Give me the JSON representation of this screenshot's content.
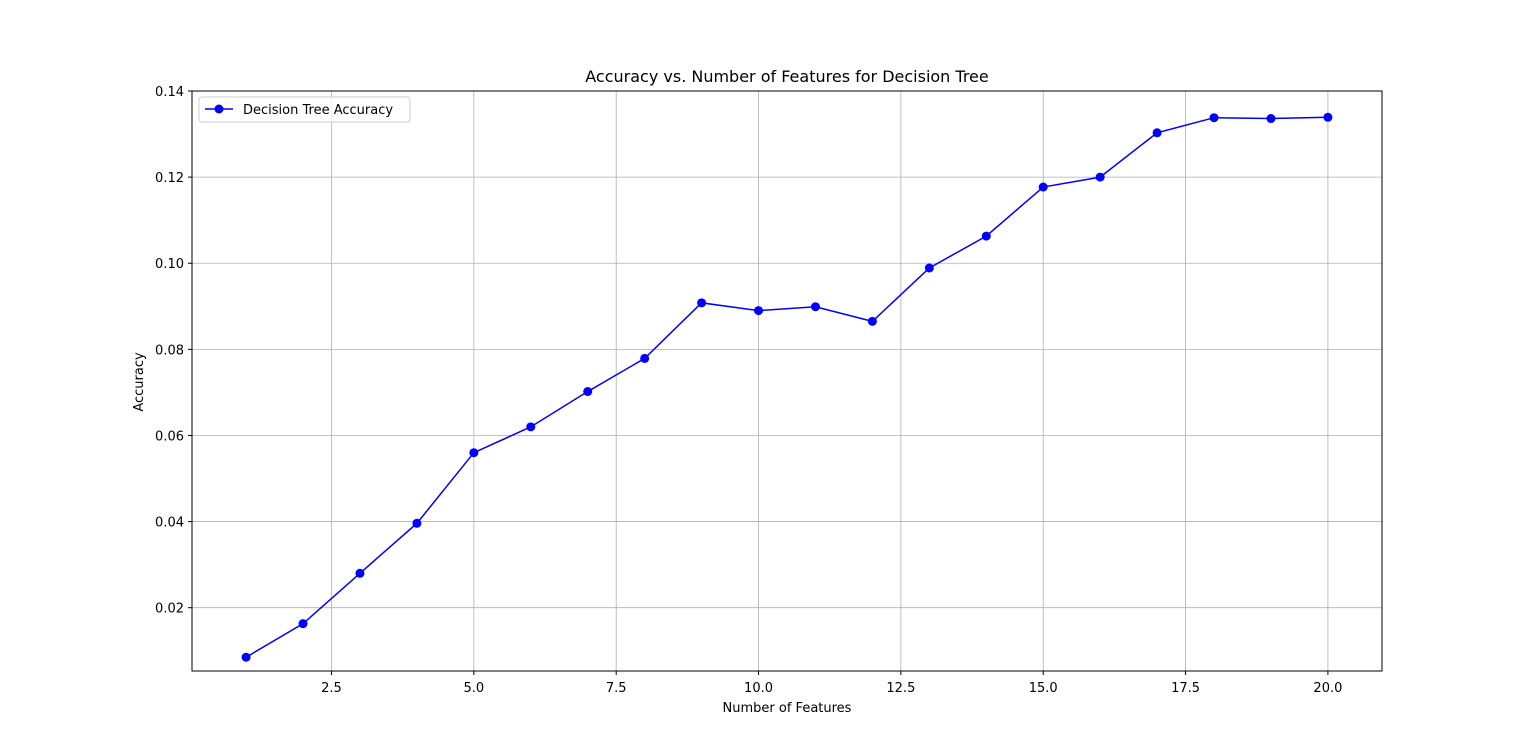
{
  "chart_data": {
    "type": "line",
    "title": "Accuracy vs. Number of Features for Decision Tree",
    "xlabel": "Number of Features",
    "ylabel": "Accuracy",
    "xlim": [
      0.05,
      20.95
    ],
    "ylim": [
      0.0053,
      0.14
    ],
    "x_ticks": [
      2.5,
      5.0,
      7.5,
      10.0,
      12.5,
      15.0,
      17.5,
      20.0
    ],
    "x_tick_labels": [
      "2.5",
      "5.0",
      "7.5",
      "10.0",
      "12.5",
      "15.0",
      "17.5",
      "20.0"
    ],
    "y_ticks": [
      0.02,
      0.04,
      0.06,
      0.08,
      0.1,
      0.12,
      0.14
    ],
    "y_tick_labels": [
      "0.02",
      "0.04",
      "0.06",
      "0.08",
      "0.10",
      "0.12",
      "0.14"
    ],
    "grid": true,
    "legend_position": "top-left",
    "series": [
      {
        "name": "Decision Tree Accuracy",
        "color": "#0000ff",
        "marker": "circle",
        "x": [
          1,
          2,
          3,
          4,
          5,
          6,
          7,
          8,
          9,
          10,
          11,
          12,
          13,
          14,
          15,
          16,
          17,
          18,
          19,
          20
        ],
        "values": [
          0.0085,
          0.0163,
          0.028,
          0.0396,
          0.056,
          0.062,
          0.0702,
          0.0779,
          0.0908,
          0.089,
          0.0899,
          0.0865,
          0.0989,
          0.1063,
          0.1177,
          0.12,
          0.1303,
          0.1338,
          0.1336,
          0.1339
        ]
      }
    ]
  }
}
